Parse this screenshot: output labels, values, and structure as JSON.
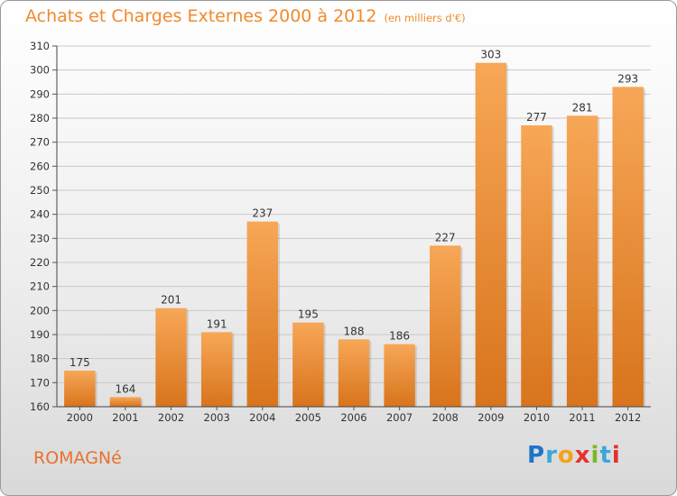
{
  "header": {
    "title": "Achats et Charges Externes 2000 à 2012",
    "subtitle": "(en milliers d'€)"
  },
  "footer": {
    "commune": "ROMAGNé",
    "logo": [
      "P",
      "r",
      "o",
      "x",
      "i",
      "t",
      "i"
    ]
  },
  "colors": {
    "bar_top": "#f7a757",
    "bar_bottom": "#d8741c",
    "title": "#f08a2c",
    "commune": "#e9722c"
  },
  "chart_data": {
    "type": "bar",
    "title": "Achats et Charges Externes 2000 à 2012",
    "subtitle": "(en milliers d'€)",
    "xlabel": "",
    "ylabel": "",
    "categories": [
      "2000",
      "2001",
      "2002",
      "2003",
      "2004",
      "2005",
      "2006",
      "2007",
      "2008",
      "2009",
      "2010",
      "2011",
      "2012"
    ],
    "values": [
      175,
      164,
      201,
      191,
      237,
      195,
      188,
      186,
      227,
      303,
      277,
      281,
      293
    ],
    "ylim": [
      160,
      310
    ],
    "yticks": [
      160,
      170,
      180,
      190,
      200,
      210,
      220,
      230,
      240,
      250,
      260,
      270,
      280,
      290,
      300,
      310
    ],
    "grid": true,
    "data_labels": true
  }
}
